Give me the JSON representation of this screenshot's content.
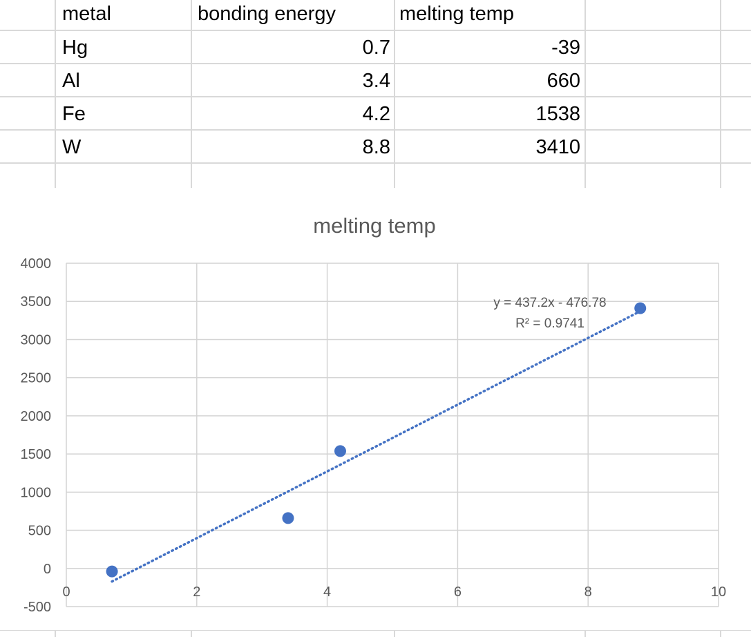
{
  "table": {
    "headers": [
      "metal",
      "bonding energy",
      "melting temp"
    ],
    "rows": [
      [
        "Hg",
        "0.7",
        "-39"
      ],
      [
        "Al",
        "3.4",
        "660"
      ],
      [
        "Fe",
        "4.2",
        "1538"
      ],
      [
        "W",
        "8.8",
        "3410"
      ]
    ]
  },
  "colors": {
    "grid": "#d4d4d4",
    "marker": "#4472c4",
    "trendline": "#4472c4",
    "text": "#595959"
  },
  "chart_data": {
    "type": "scatter",
    "title": "melting temp",
    "xlabel": "",
    "ylabel": "",
    "xlim": [
      0,
      10
    ],
    "ylim": [
      -500,
      4000
    ],
    "x_ticks": [
      "0",
      "2",
      "4",
      "6",
      "8",
      "10"
    ],
    "y_ticks": [
      "4000",
      "3500",
      "3000",
      "2500",
      "2000",
      "1500",
      "1000",
      "500",
      "0",
      "-500"
    ],
    "grid": true,
    "legend": "none",
    "series": [
      {
        "x": [
          0.7,
          3.4,
          4.2,
          8.8
        ],
        "y": [
          -39,
          660,
          1538,
          3410
        ]
      }
    ],
    "trendline": {
      "type": "linear",
      "style": "dotted",
      "slope": 437.2,
      "intercept": -476.78,
      "x_range": [
        0.7,
        8.8
      ],
      "equation": "y = 437.2x - 476.78",
      "r_squared": "R² = 0.9741"
    }
  }
}
